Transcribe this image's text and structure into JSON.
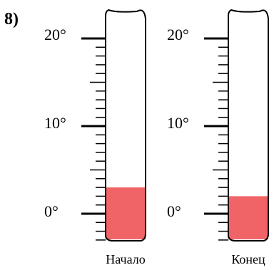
{
  "problem_number": "8)",
  "scale": {
    "min_deg": 0,
    "max_deg": 20,
    "labels": [
      "0°",
      "10°",
      "20°"
    ],
    "minor_step_deg": 1
  },
  "thermometers": [
    {
      "caption": "Начало",
      "reading_deg": 3
    },
    {
      "caption": "Конец",
      "reading_deg": 2
    }
  ],
  "colors": {
    "liquid": "#f06468",
    "outline": "#000000"
  }
}
